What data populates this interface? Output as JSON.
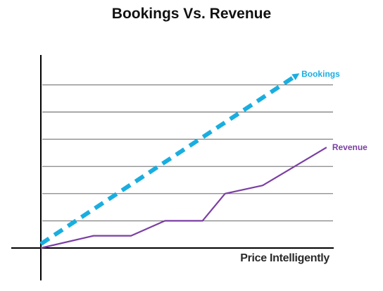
{
  "chart_data": {
    "type": "line",
    "title": "Bookings Vs. Revenue",
    "xlabel": "",
    "ylabel": "",
    "x": [
      0,
      1,
      2,
      3,
      4,
      5,
      6,
      7
    ],
    "xlim": [
      0,
      7.8
    ],
    "ylim": [
      0,
      6.4
    ],
    "grid": true,
    "gridlines_y": [
      1,
      2,
      3,
      4,
      5,
      6
    ],
    "legend": "inline-end-labels",
    "series": [
      {
        "name": "Bookings",
        "style": "dashed-arrow",
        "color": "#1aaee0",
        "x": [
          0,
          6.8
        ],
        "values": [
          0.15,
          6.35
        ]
      },
      {
        "name": "Revenue",
        "style": "solid",
        "color": "#7b3fa3",
        "x": [
          0,
          1.4,
          2.4,
          3.3,
          4.3,
          4.9,
          5.9,
          7.6
        ],
        "values": [
          0,
          0.45,
          0.45,
          1.0,
          1.0,
          2.0,
          2.3,
          3.7
        ]
      }
    ]
  },
  "watermark": "Price Intelligently"
}
